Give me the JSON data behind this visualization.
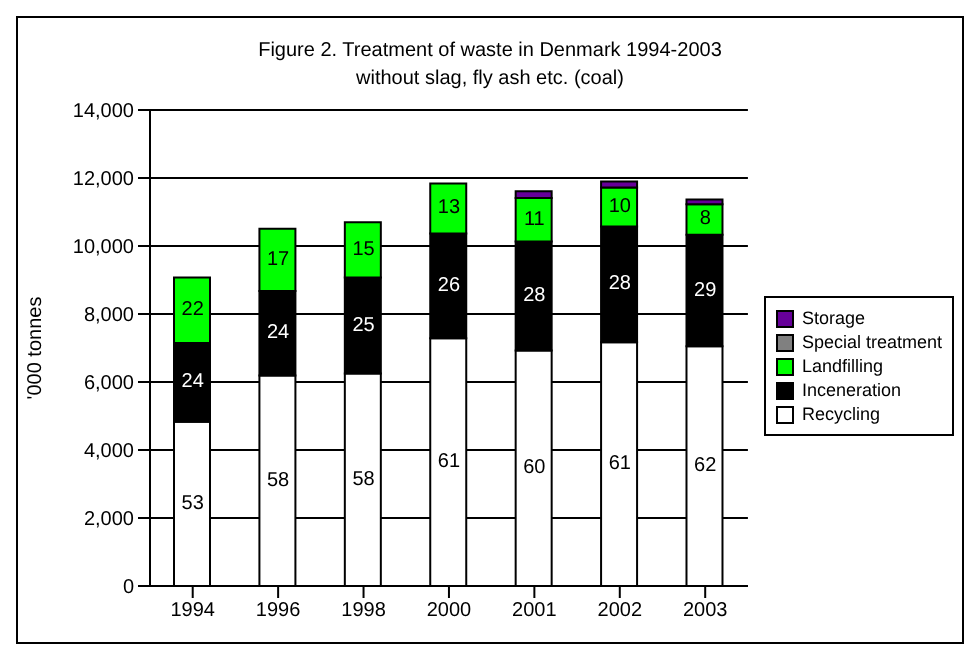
{
  "chart_data": {
    "type": "bar",
    "stacked": true,
    "title": "Figure 2. Treatment of waste in Denmark 1994-2003",
    "subtitle": "without slag, fly ash etc. (coal)",
    "ylabel": "'000 tonnes",
    "categories": [
      "1994",
      "1996",
      "1998",
      "2000",
      "2001",
      "2002",
      "2003"
    ],
    "series": [
      {
        "name": "Recycling",
        "color": "#ffffff",
        "values": [
          4830,
          6190,
          6250,
          7290,
          6930,
          7170,
          7050
        ]
      },
      {
        "name": "Inceneration",
        "color": "#000000",
        "values": [
          2320,
          2490,
          2820,
          3080,
          3200,
          3400,
          3280
        ]
      },
      {
        "name": "Landfilling",
        "color": "#00ff00",
        "values": [
          1920,
          1830,
          1630,
          1470,
          1280,
          1150,
          900
        ]
      },
      {
        "name": "Special treatment",
        "color": "#808080",
        "values": [
          0,
          0,
          0,
          0,
          0,
          0,
          0
        ]
      },
      {
        "name": "Storage",
        "color": "#660099",
        "values": [
          0,
          0,
          0,
          0,
          200,
          180,
          140
        ]
      }
    ],
    "annotations": [
      "53",
      "24",
      "22",
      "58",
      "24",
      "17",
      "58",
      "25",
      "15",
      "61",
      "26",
      "13",
      "60",
      "28",
      "11",
      "61",
      "28",
      "10",
      "62",
      "29",
      "8"
    ],
    "ylim": [
      0,
      14000
    ],
    "yticks": [
      {
        "value": 0,
        "label": "0"
      },
      {
        "value": 2000,
        "label": "2,000"
      },
      {
        "value": 4000,
        "label": "4,000"
      },
      {
        "value": 6000,
        "label": "6,000"
      },
      {
        "value": 8000,
        "label": "8,000"
      },
      {
        "value": 10000,
        "label": "10,000"
      },
      {
        "value": 12000,
        "label": "12,000"
      },
      {
        "value": 14000,
        "label": "14,000"
      }
    ],
    "grid": "y",
    "legend": "right"
  }
}
